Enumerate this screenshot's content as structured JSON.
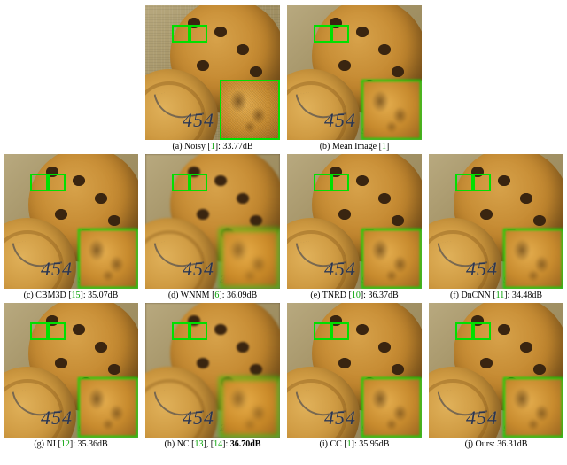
{
  "figure": {
    "roi_box_color": "#00e000",
    "inset_border_color": "#00e000",
    "weight_label": "454 g",
    "panels": [
      {
        "tag": "(a)",
        "method": "Noisy",
        "refs": [
          "1"
        ],
        "psnr": "33.77dB",
        "variant": "noisy",
        "bold": false
      },
      {
        "tag": "(b)",
        "method": "Mean Image",
        "refs": [
          "1"
        ],
        "psnr": "",
        "variant": "mid",
        "bold": false
      },
      {
        "tag": "(c)",
        "method": "CBM3D",
        "refs": [
          "15"
        ],
        "psnr": "35.07dB",
        "variant": "mid",
        "bold": false
      },
      {
        "tag": "(d)",
        "method": "WNNM",
        "refs": [
          "6"
        ],
        "psnr": "36.09dB",
        "variant": "smooth",
        "bold": false
      },
      {
        "tag": "(e)",
        "method": "TNRD",
        "refs": [
          "10"
        ],
        "psnr": "36.37dB",
        "variant": "mid",
        "bold": false
      },
      {
        "tag": "(f)",
        "method": "DnCNN",
        "refs": [
          "11"
        ],
        "psnr": "34.48dB",
        "variant": "mid",
        "bold": false
      },
      {
        "tag": "(g)",
        "method": "NI",
        "refs": [
          "12"
        ],
        "psnr": "35.36dB",
        "variant": "mid",
        "bold": false
      },
      {
        "tag": "(h)",
        "method": "NC",
        "refs": [
          "13",
          "14"
        ],
        "psnr": "36.70dB",
        "variant": "smooth",
        "bold": true
      },
      {
        "tag": "(i)",
        "method": "CC",
        "refs": [
          "1"
        ],
        "psnr": "35.95dB",
        "variant": "mid",
        "bold": false
      },
      {
        "tag": "(j)",
        "method": "Ours",
        "refs": [],
        "psnr": "36.31dB",
        "variant": "mid",
        "bold": false
      }
    ],
    "rows": [
      [
        0,
        1
      ],
      [
        2,
        3,
        4,
        5
      ],
      [
        6,
        7,
        8,
        9
      ]
    ]
  }
}
